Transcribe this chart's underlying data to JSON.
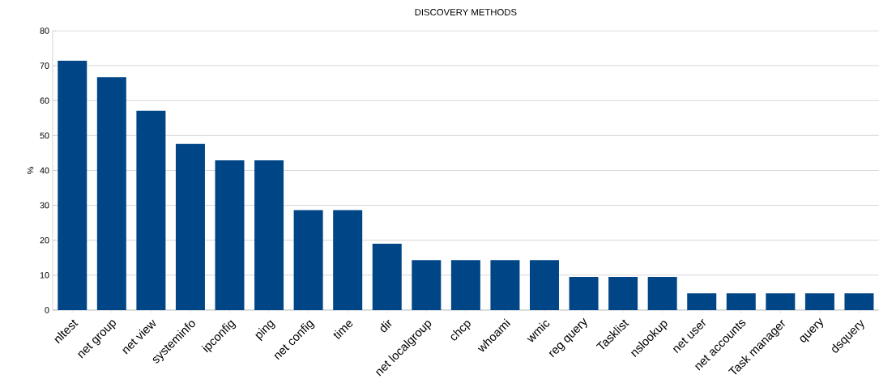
{
  "chart_data": {
    "type": "bar",
    "title": "DISCOVERY METHODS",
    "ylabel": "%",
    "categories": [
      "nltest",
      "net group",
      "net view",
      "systeminfo",
      "ipconfig",
      "ping",
      "net config",
      "time",
      "dir",
      "net localgroup",
      "chcp",
      "whoami",
      "wmic",
      "reg query",
      "Tasklist",
      "nslookup",
      "net user",
      "net accounts",
      "Task manager",
      "query",
      "dsquery"
    ],
    "values": [
      71.4,
      66.7,
      57.1,
      47.6,
      42.9,
      42.9,
      28.6,
      28.6,
      19.0,
      14.3,
      14.3,
      14.3,
      14.3,
      9.5,
      9.5,
      9.5,
      4.8,
      4.8,
      4.8,
      4.8,
      4.8
    ],
    "color": "#004586",
    "ylim": [
      0,
      80
    ],
    "yticks": [
      0,
      10,
      20,
      30,
      40,
      50,
      60,
      70,
      80
    ],
    "grid": "y"
  }
}
